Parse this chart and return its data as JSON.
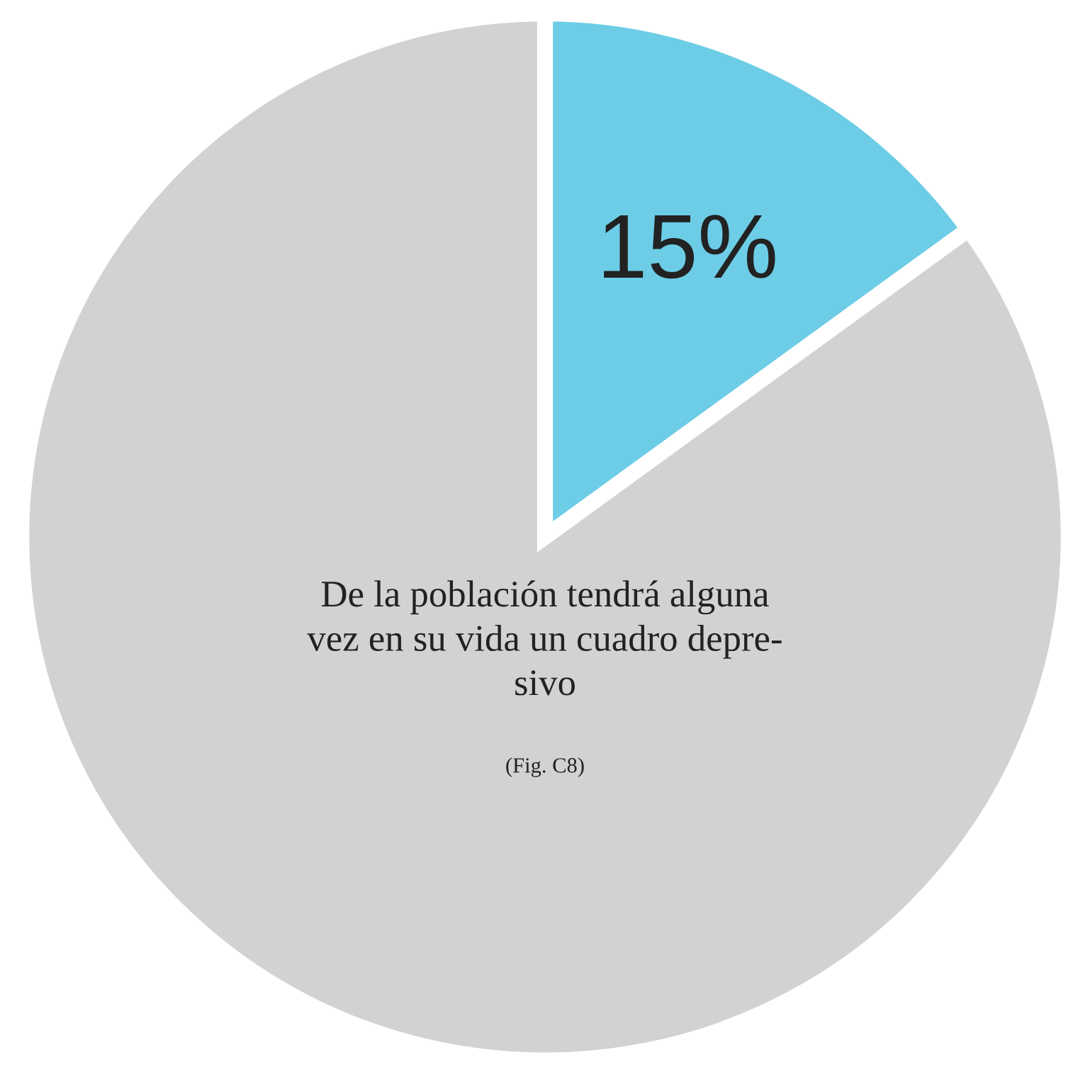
{
  "chart_data": {
    "type": "pie",
    "categories": [
      null,
      null
    ],
    "values": [
      15,
      85
    ],
    "colors": [
      "#6dcde6",
      "#d1d2d2"
    ],
    "value_labels": [
      "15%",
      null
    ],
    "annotations": [
      "De la población tendrá alguna\nvez en su vida un cuadro depre-\nsivo",
      "(Fig. C8)"
    ],
    "legend": false
  }
}
